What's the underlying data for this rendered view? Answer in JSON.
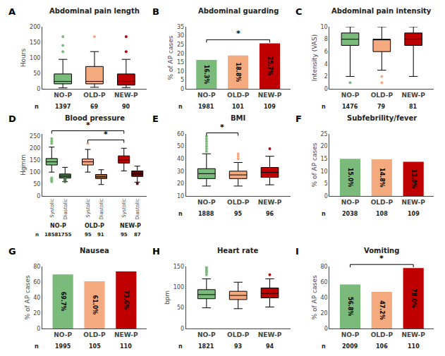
{
  "chart_data": [
    {
      "type": "box",
      "panel_label": "A",
      "title": "Abdominal pain length",
      "ylabel": "Hours",
      "categories": [
        "NO-P",
        "OLD-P",
        "NEW-P"
      ],
      "colors": [
        "#7aba7a",
        "#f4a97f",
        "#c00000"
      ],
      "stats": [
        {
          "med": 24,
          "q1": 16,
          "q3": 48,
          "whislo": 3,
          "whishi": 95,
          "fliers": [
            120,
            140,
            168
          ]
        },
        {
          "med": 24,
          "q1": 16,
          "q3": 72,
          "whislo": 5,
          "whishi": 120,
          "fliers": [
            168
          ]
        },
        {
          "med": 24,
          "q1": 12,
          "q3": 48,
          "whislo": 4,
          "whishi": 95,
          "fliers": [
            120,
            168
          ]
        }
      ],
      "n_label": "n",
      "n_values": [
        "1397",
        "69",
        "90"
      ],
      "ylim": [
        0,
        200
      ],
      "yticks": [
        0,
        50,
        100,
        150,
        200
      ],
      "grid": false
    },
    {
      "type": "bar",
      "panel_label": "B",
      "title": "Abdominal guarding",
      "ylabel": "% of AP cases",
      "categories": [
        "NO-P",
        "OLD-P",
        "NEW-P"
      ],
      "colors": [
        "#7aba7a",
        "#f4a97f",
        "#c00000"
      ],
      "values": [
        16.3,
        18.8,
        25.7
      ],
      "value_labels": [
        "16.3%",
        "18.8%",
        "25.7%"
      ],
      "data_labels": true,
      "significance": [
        {
          "from": 0,
          "to": 2,
          "label": "*"
        }
      ],
      "n_label": "n",
      "n_values": [
        "1981",
        "101",
        "109"
      ],
      "ylim": [
        0,
        35
      ],
      "yticks": [
        0,
        5,
        10,
        15,
        20,
        25,
        30,
        35
      ],
      "grid": false
    },
    {
      "type": "box",
      "panel_label": "C",
      "title": "Abdominal pain intensity",
      "ylabel": "Intensity (VAS)",
      "categories": [
        "NO-P",
        "OLD-P",
        "NEW-P"
      ],
      "colors": [
        "#7aba7a",
        "#f4a97f",
        "#c00000"
      ],
      "stats": [
        {
          "med": 8,
          "q1": 7,
          "q3": 9,
          "whislo": 2,
          "whishi": 10,
          "fliers": [
            1
          ]
        },
        {
          "med": 8,
          "q1": 6,
          "q3": 8,
          "whislo": 3,
          "whishi": 10,
          "fliers": [
            1,
            2
          ]
        },
        {
          "med": 8,
          "q1": 7,
          "q3": 9,
          "whislo": 2,
          "whishi": 10,
          "fliers": []
        }
      ],
      "n_label": "n",
      "n_values": [
        "1476",
        "79",
        "81"
      ],
      "ylim": [
        0,
        10
      ],
      "yticks": [
        0,
        2,
        4,
        6,
        8,
        10
      ],
      "grid": false
    },
    {
      "type": "box",
      "panel_label": "D",
      "title": "Blood pressure",
      "ylabel": "Hgmm",
      "categories": [
        "NO-P",
        "OLD-P",
        "NEW-P"
      ],
      "subgroups": [
        "Systolic",
        "Diastolic",
        "Systolic",
        "Diastolic",
        "Systolic",
        "Diastolic"
      ],
      "colors": [
        "#7aba7a",
        "#4a7a4a",
        "#f4a97f",
        "#a06030",
        "#c00000",
        "#700000"
      ],
      "stats": [
        {
          "med": 143,
          "q1": 130,
          "q3": 157,
          "whislo": 100,
          "whishi": 205,
          "fliers": [
            220,
            230,
            240,
            60,
            65,
            70,
            75
          ]
        },
        {
          "med": 83,
          "q1": 75,
          "q3": 92,
          "whislo": 60,
          "whishi": 120,
          "fliers": [
            60,
            62,
            64,
            66,
            70,
            72
          ]
        },
        {
          "med": 143,
          "q1": 130,
          "q3": 155,
          "whislo": 100,
          "whishi": 195,
          "fliers": [
            220
          ]
        },
        {
          "med": 80,
          "q1": 73,
          "q3": 90,
          "whislo": 48,
          "whishi": 110,
          "fliers": []
        },
        {
          "med": 150,
          "q1": 138,
          "q3": 168,
          "whislo": 105,
          "whishi": 200,
          "fliers": []
        },
        {
          "med": 92,
          "q1": 82,
          "q3": 105,
          "whislo": 58,
          "whishi": 125,
          "fliers": [
            52
          ]
        }
      ],
      "significance": [
        {
          "from": 0,
          "to": 4,
          "label": "*"
        },
        {
          "from": 2,
          "to": 4,
          "label": "*"
        }
      ],
      "n_label": "n",
      "n_values": [
        "1858",
        "1755",
        "95",
        "91",
        "95",
        "87"
      ],
      "ylim": [
        0,
        260
      ],
      "yticks": [
        0,
        50,
        100,
        150,
        200,
        250
      ],
      "grid": false
    },
    {
      "type": "box",
      "panel_label": "E",
      "title": "BMI",
      "categories": [
        "NO-P",
        "OLD-P",
        "NEW-P"
      ],
      "colors": [
        "#7aba7a",
        "#f4a97f",
        "#c00000"
      ],
      "stats": [
        {
          "med": 28,
          "q1": 24,
          "q3": 32,
          "whislo": 18,
          "whishi": 44,
          "fliers": [
            46,
            48,
            50,
            52,
            54,
            56,
            58
          ]
        },
        {
          "med": 27,
          "q1": 24,
          "q3": 30,
          "whislo": 18,
          "whishi": 37,
          "fliers": [
            40,
            42,
            44
          ]
        },
        {
          "med": 29,
          "q1": 25,
          "q3": 33,
          "whislo": 19,
          "whishi": 42,
          "fliers": [
            48
          ]
        }
      ],
      "significance": [
        {
          "from": 0,
          "to": 1,
          "label": "*"
        }
      ],
      "n_label": "n",
      "n_values": [
        "1888",
        "95",
        "96"
      ],
      "ylim": [
        10,
        60
      ],
      "yticks": [
        10,
        20,
        30,
        40,
        50,
        60
      ],
      "grid": false
    },
    {
      "type": "bar",
      "panel_label": "F",
      "title": "Subfebrility/fever",
      "ylabel": "% of AP cases",
      "categories": [
        "NO-P",
        "OLD-P",
        "NEW-P"
      ],
      "colors": [
        "#7aba7a",
        "#f4a97f",
        "#c00000"
      ],
      "values": [
        15.0,
        14.8,
        13.8
      ],
      "value_labels": [
        "15.0%",
        "14.8%",
        "13.8%"
      ],
      "data_labels": true,
      "n_label": "n",
      "n_values": [
        "2038",
        "108",
        "109"
      ],
      "ylim": [
        0,
        25
      ],
      "yticks": [
        0,
        5,
        10,
        15,
        20,
        25
      ],
      "grid": false
    },
    {
      "type": "bar",
      "panel_label": "G",
      "title": "Nausea",
      "ylabel": "% of AP cases",
      "categories": [
        "NO-P",
        "OLD-P",
        "NEW-P"
      ],
      "colors": [
        "#7aba7a",
        "#f4a97f",
        "#c00000"
      ],
      "values": [
        69.7,
        61.0,
        73.6
      ],
      "value_labels": [
        "69.7%",
        "61.0%",
        "73.6%"
      ],
      "data_labels": true,
      "n_label": "n",
      "n_values": [
        "1995",
        "105",
        "110"
      ],
      "ylim": [
        0,
        80
      ],
      "yticks": [
        0,
        20,
        40,
        60,
        80
      ],
      "grid": false
    },
    {
      "type": "box",
      "panel_label": "H",
      "title": "Heart rate",
      "ylabel": "bpm",
      "categories": [
        "NO-P",
        "OLD-P",
        "NEW-P"
      ],
      "colors": [
        "#7aba7a",
        "#f4a97f",
        "#c00000"
      ],
      "stats": [
        {
          "med": 82,
          "q1": 72,
          "q3": 94,
          "whislo": 50,
          "whishi": 120,
          "fliers": [
            130,
            135,
            138,
            140,
            145,
            148
          ]
        },
        {
          "med": 80,
          "q1": 70,
          "q3": 90,
          "whislo": 48,
          "whishi": 112,
          "fliers": []
        },
        {
          "med": 85,
          "q1": 74,
          "q3": 98,
          "whislo": 52,
          "whishi": 120,
          "fliers": [
            130
          ]
        }
      ],
      "n_label": "n",
      "n_values": [
        "1821",
        "93",
        "94"
      ],
      "ylim": [
        0,
        150
      ],
      "yticks": [
        0,
        50,
        100,
        150
      ],
      "grid": false
    },
    {
      "type": "bar",
      "panel_label": "I",
      "title": "Vomiting",
      "ylabel": "% of AP cases",
      "categories": [
        "NO-P",
        "OLD-P",
        "NEW-P"
      ],
      "colors": [
        "#7aba7a",
        "#f4a97f",
        "#c00000"
      ],
      "values": [
        56.8,
        47.2,
        78.0
      ],
      "value_labels": [
        "56.8%",
        "47.2%",
        "78.0%"
      ],
      "data_labels": true,
      "significance": [
        {
          "from": 0,
          "to": 2,
          "label": "*"
        }
      ],
      "n_label": "n",
      "n_values": [
        "2009",
        "106",
        "110"
      ],
      "ylim": [
        0,
        80
      ],
      "yticks": [
        0,
        20,
        40,
        60,
        80
      ],
      "grid": false
    }
  ]
}
